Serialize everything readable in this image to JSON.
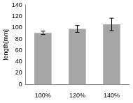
{
  "chart_data": {
    "type": "bar",
    "y_label": "length[mm]",
    "categories": [
      "100%",
      "120%",
      "140%"
    ],
    "values": [
      91,
      98,
      106
    ],
    "errors": [
      3,
      6,
      11
    ],
    "color": "#a6a6a6",
    "ylim": [
      0,
      140
    ],
    "yticks": [
      0,
      20,
      40,
      60,
      80,
      100,
      120,
      140
    ],
    "grid": false
  }
}
